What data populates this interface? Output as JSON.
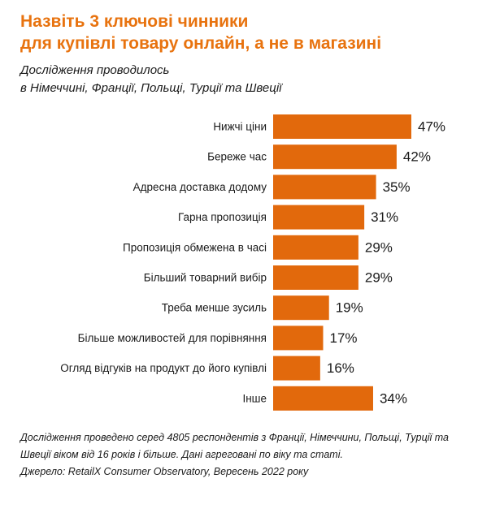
{
  "title_lines": [
    "Назвіть 3 ключові чинники",
    "для купівлі товару онлайн, а не в магазині"
  ],
  "subtitle_lines": [
    "Дослідження проводилось",
    "в Німеччині, Франції, Польщі, Турції та Швеції"
  ],
  "footnote_lines": [
    "Дослідження проведено серед 4805 респондентів з Франції, Німеччини, Польщі, Турції та",
    "Швеції віком від 16 років і більше. Дані  агреговані по віку та статі.",
    "Джерело: RetailX Consumer Observatory, Вересень 2022 року"
  ],
  "colors": {
    "accent": "#e8730f",
    "bar": "#e2690c",
    "text": "#1a1a1a"
  },
  "chart_data": {
    "type": "bar",
    "orientation": "horizontal",
    "title": "Назвіть 3 ключові чинники для купівлі товару онлайн, а не в магазині",
    "categories": [
      "Нижчі ціни",
      "Береже час",
      "Адресна доставка додому",
      "Гарна пропозиція",
      "Пропозиція обмежена в часі",
      "Більший товарний вибір",
      "Треба менше зусиль",
      "Більше можливостей для порівняння",
      "Огляд відгуків на продукт до його купівлі",
      "Інше"
    ],
    "values": [
      47,
      42,
      35,
      31,
      29,
      29,
      19,
      17,
      16,
      34
    ],
    "value_labels": [
      "47%",
      "42%",
      "35%",
      "31%",
      "29%",
      "29%",
      "19%",
      "17%",
      "16%",
      "34%"
    ],
    "unit": "%",
    "xlim": [
      0,
      47
    ],
    "grid": false,
    "legend": "none"
  }
}
